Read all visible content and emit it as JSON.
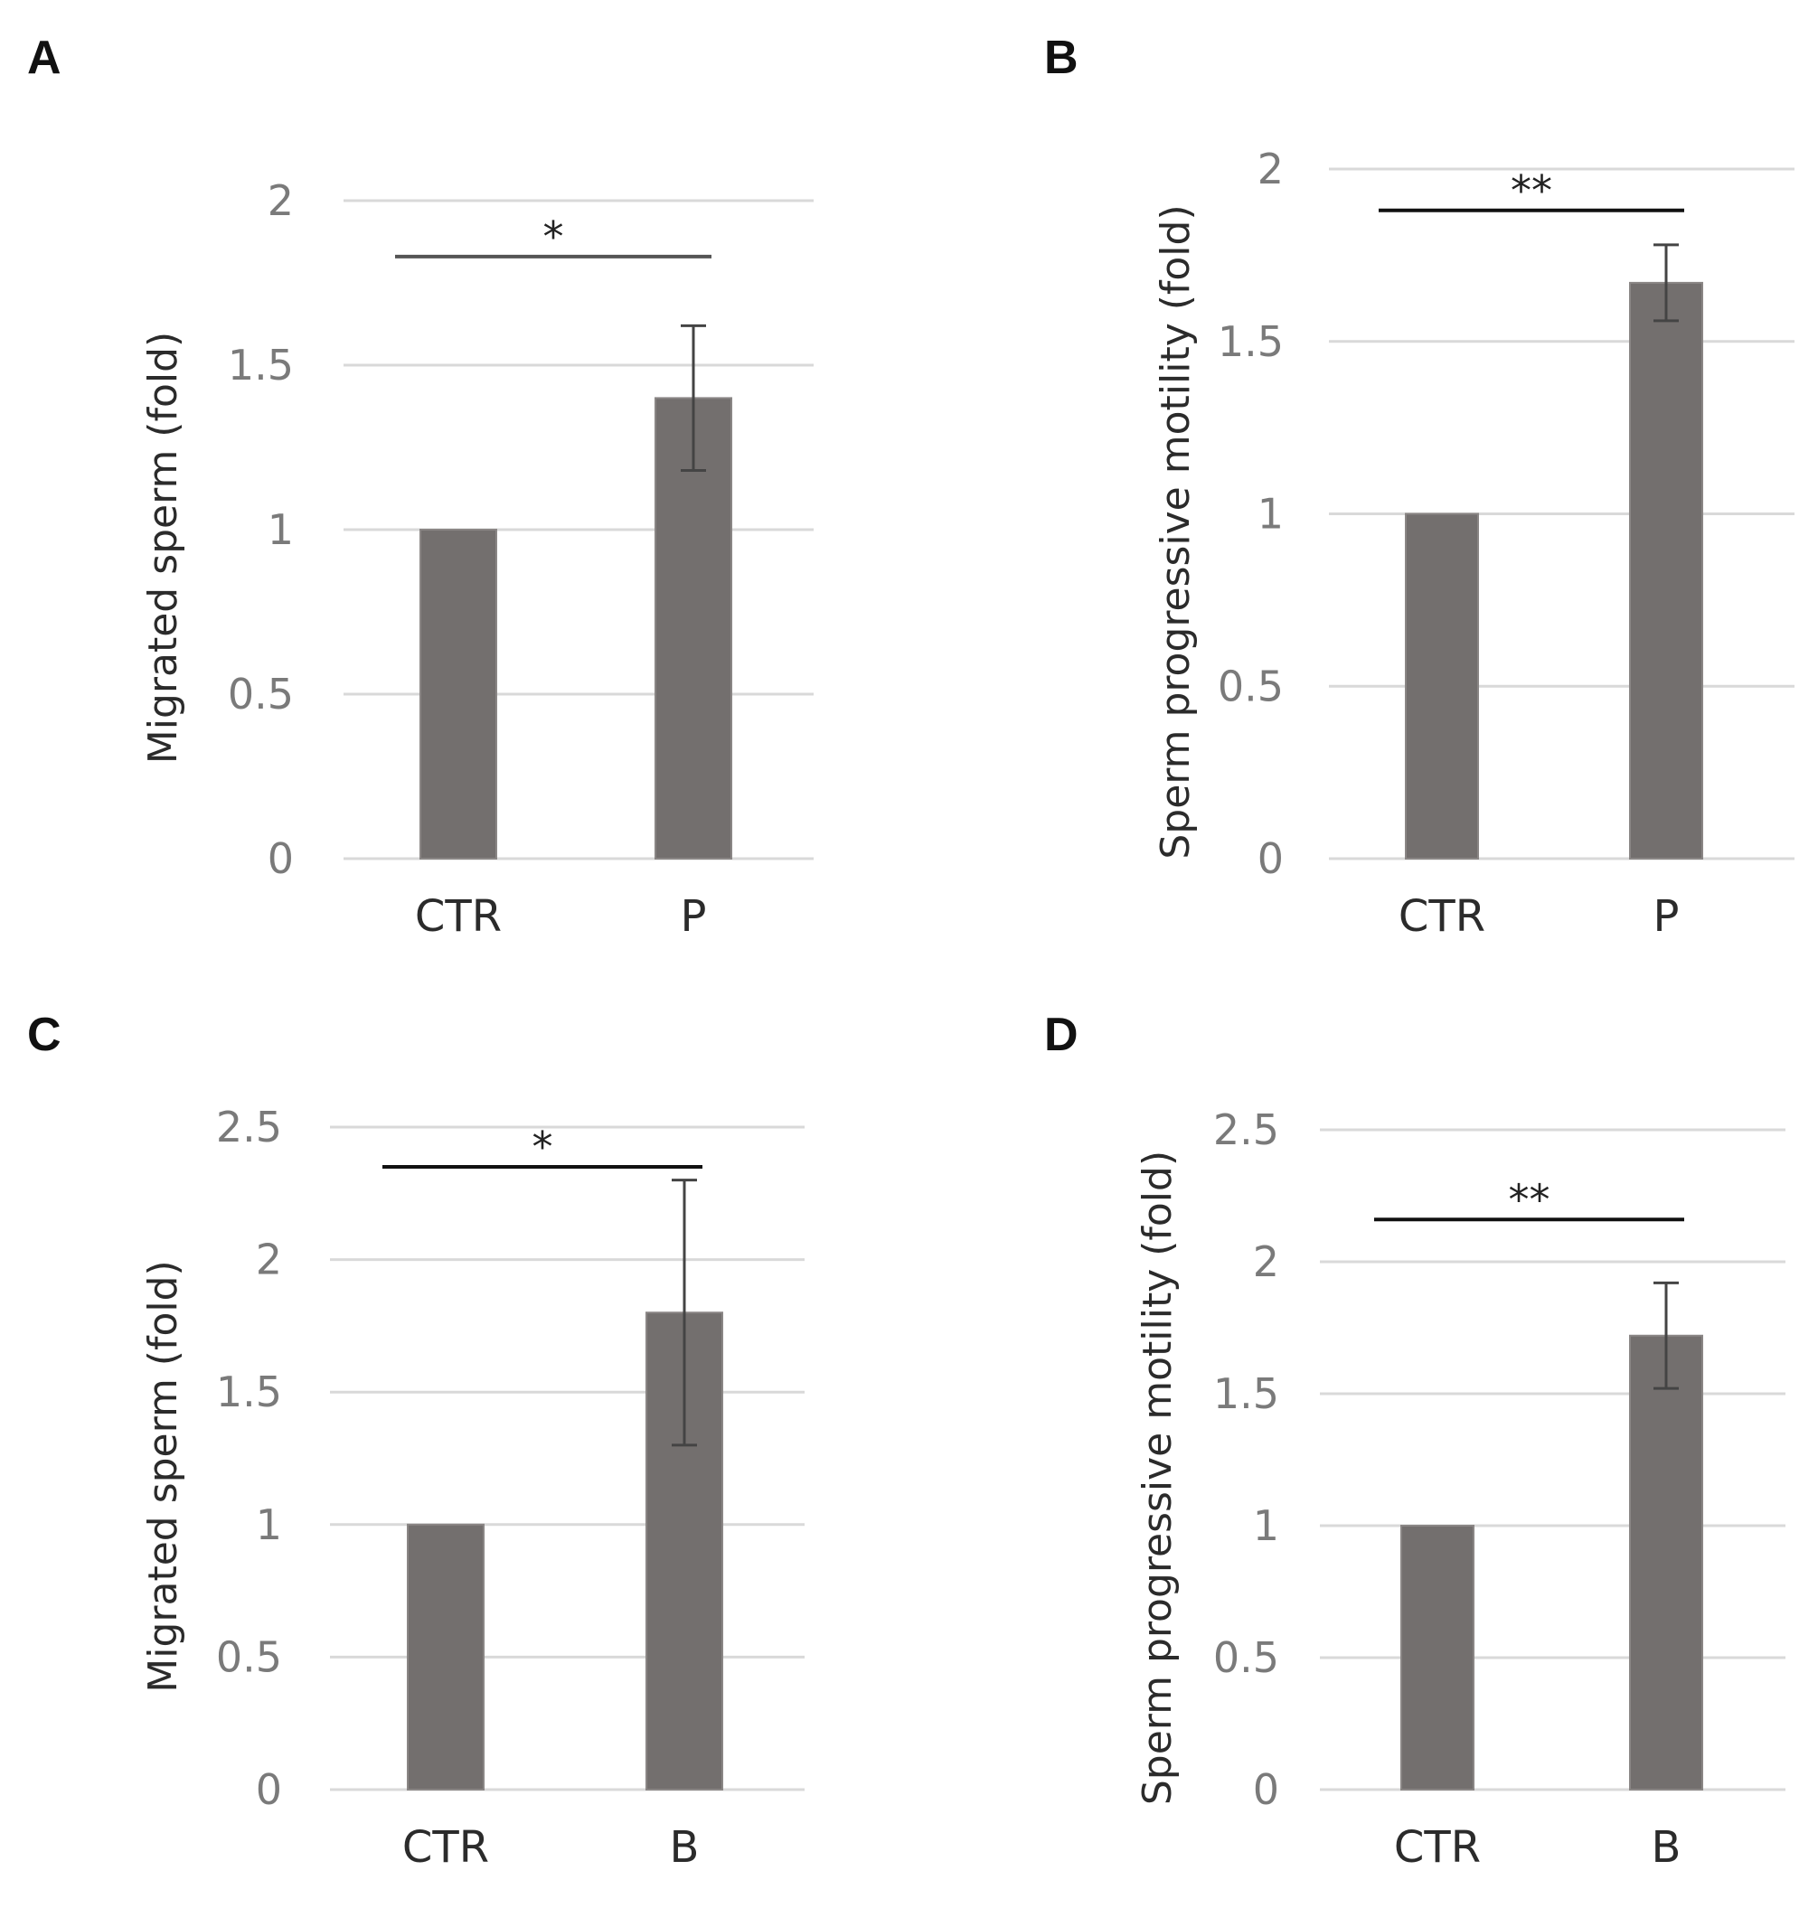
{
  "chart_data": [
    {
      "panel": "A",
      "type": "bar",
      "categories": [
        "CTR",
        "P"
      ],
      "values": [
        1,
        1.4
      ],
      "errors": [
        0,
        0.22
      ],
      "ylabel": "Migrated sperm (fold)",
      "yticks": [
        "0",
        "0.5",
        "1",
        "1.5",
        "2"
      ],
      "ylim": [
        0,
        2
      ],
      "grid": true,
      "significance": {
        "label": "*",
        "level": 1.83,
        "from": "CTR",
        "to": "P"
      },
      "bar_color": "#736f6e",
      "bracket_color": "#555555"
    },
    {
      "panel": "B",
      "type": "bar",
      "categories": [
        "CTR",
        "P"
      ],
      "values": [
        1,
        1.67
      ],
      "errors": [
        0,
        0.11
      ],
      "ylabel": "Sperm progressive motility (fold)",
      "yticks": [
        "0",
        "0.5",
        "1",
        "1.5",
        "2"
      ],
      "ylim": [
        0,
        2
      ],
      "grid": true,
      "significance": {
        "label": "**",
        "level": 1.88,
        "from": "CTR",
        "to": "P"
      },
      "bar_color": "#736f6e",
      "bracket_color": "#111111"
    },
    {
      "panel": "C",
      "type": "bar",
      "categories": [
        "CTR",
        "B"
      ],
      "values": [
        1,
        1.8
      ],
      "errors": [
        0,
        0.5
      ],
      "ylabel": "Migrated sperm (fold)",
      "yticks": [
        "0",
        "0.5",
        "1",
        "1.5",
        "2",
        "2.5"
      ],
      "ylim": [
        0,
        2.5
      ],
      "grid": true,
      "significance": {
        "label": "*",
        "level": 2.35,
        "from": "CTR",
        "to": "B"
      },
      "bar_color": "#736f6e",
      "bracket_color": "#111111"
    },
    {
      "panel": "D",
      "type": "bar",
      "categories": [
        "CTR",
        "B"
      ],
      "values": [
        1,
        1.72
      ],
      "errors": [
        0,
        0.2
      ],
      "ylabel": "Sperm progressive motility (fold)",
      "yticks": [
        "0",
        "0.5",
        "1",
        "1.5",
        "2",
        "2.5"
      ],
      "ylim": [
        0,
        2.5
      ],
      "grid": true,
      "significance": {
        "label": "**",
        "level": 2.16,
        "from": "CTR",
        "to": "B"
      },
      "bar_color": "#736f6e",
      "bracket_color": "#111111"
    }
  ]
}
